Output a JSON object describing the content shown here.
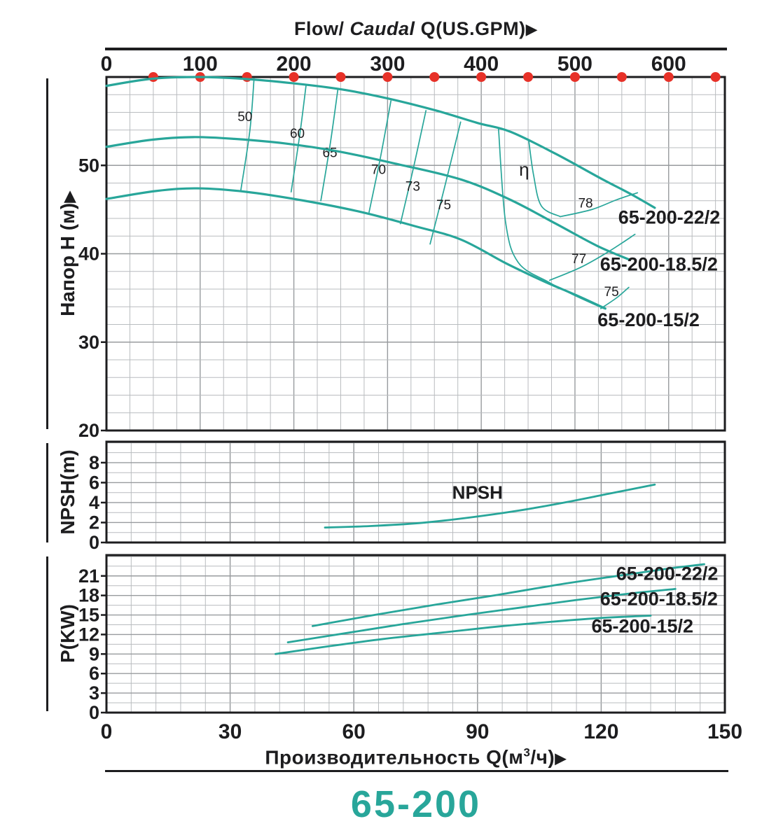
{
  "page_title": "65-200",
  "colors": {
    "accent": "#28a69a",
    "curve": "#28a69a",
    "dot_red": "#e73128",
    "grid_minor": "#b9bcbf",
    "grid_major": "#989b9e",
    "border": "#1d1d1f",
    "text": "#1d1d1f"
  },
  "header": {
    "flow_label": "Flow/",
    "flow_italic": "Caudal",
    "flow_unit": "Q(US.GPM)",
    "arrow": "▶"
  },
  "bottom_axis": {
    "label": "Производительность",
    "unit_pre": "Q(м",
    "unit_sup": "3",
    "unit_post": "/ч)",
    "arrow": "▶",
    "ticks": [
      "0",
      "30",
      "60",
      "90",
      "120",
      "150"
    ]
  },
  "chart_data": [
    {
      "type": "line",
      "name": "head-chart",
      "ylabel": "Напор H (м)",
      "ylabel_arrow": "▶",
      "yticks": [
        "50",
        "40",
        "30",
        "20"
      ],
      "ylim": [
        20,
        60
      ],
      "x_top_ticks": [
        "0",
        "100",
        "200",
        "300",
        "400",
        "500",
        "600"
      ],
      "x_top_dots_gpm": [
        50,
        100,
        150,
        200,
        250,
        300,
        350,
        400,
        450,
        500,
        550,
        600,
        650
      ],
      "x_range_m3h": [
        0,
        150
      ],
      "series": [
        {
          "name": "65-200-22/2",
          "points": [
            [
              0,
              59.0
            ],
            [
              11,
              59.8
            ],
            [
              22,
              60.0
            ],
            [
              33,
              59.8
            ],
            [
              45,
              59.3
            ],
            [
              57,
              58.6
            ],
            [
              68,
              57.6
            ],
            [
              80,
              56.2
            ],
            [
              90,
              54.8
            ],
            [
              98,
              53.8
            ],
            [
              109,
              51.3
            ],
            [
              120,
              48.5
            ],
            [
              127,
              46.8
            ],
            [
              133,
              45.2
            ]
          ],
          "label_pos": [
            136.5,
            43.4
          ]
        },
        {
          "name": "65-200-18.5/2",
          "points": [
            [
              0,
              52.1
            ],
            [
              11,
              52.9
            ],
            [
              21,
              53.2
            ],
            [
              31,
              53.0
            ],
            [
              43,
              52.5
            ],
            [
              56,
              51.6
            ],
            [
              70,
              50.2
            ],
            [
              86,
              48.4
            ],
            [
              98,
              46.1
            ],
            [
              109,
              43.4
            ],
            [
              119,
              40.9
            ],
            [
              127,
              39.3
            ]
          ],
          "label_pos": [
            134.0,
            38.1
          ]
        },
        {
          "name": "65-200-15/2",
          "points": [
            [
              0,
              46.2
            ],
            [
              12,
              47.1
            ],
            [
              22,
              47.4
            ],
            [
              34,
              47.0
            ],
            [
              48,
              46.0
            ],
            [
              62,
              44.7
            ],
            [
              75,
              43.1
            ],
            [
              86,
              41.6
            ],
            [
              97,
              38.9
            ],
            [
              106,
              36.9
            ],
            [
              114,
              35.3
            ],
            [
              121,
              33.8
            ]
          ],
          "label_pos": [
            131.5,
            31.8
          ]
        }
      ],
      "efficiency_lines": [
        {
          "label": "50",
          "points": [
            [
              35.8,
              59.8
            ],
            [
              34.8,
              54.0
            ],
            [
              32.6,
              47.2
            ]
          ],
          "label_pos": [
            33.6,
            55.5
          ]
        },
        {
          "label": "60",
          "points": [
            [
              48.4,
              59.0
            ],
            [
              46.9,
              53.5
            ],
            [
              44.8,
              47.0
            ]
          ],
          "label_pos": [
            46.3,
            53.6
          ]
        },
        {
          "label": "65",
          "points": [
            [
              56.1,
              58.5
            ],
            [
              54.3,
              52.5
            ],
            [
              52.0,
              46.0
            ]
          ],
          "label_pos": [
            54.2,
            51.4
          ]
        },
        {
          "label": "70",
          "points": [
            [
              69.0,
              57.3
            ],
            [
              66.5,
              51.0
            ],
            [
              63.7,
              44.7
            ]
          ],
          "label_pos": [
            66.0,
            49.5
          ]
        },
        {
          "label": "73",
          "points": [
            [
              77.5,
              56.2
            ],
            [
              74.5,
              49.8
            ],
            [
              71.3,
              43.4
            ]
          ],
          "label_pos": [
            74.3,
            47.6
          ]
        },
        {
          "label": "75",
          "points": [
            [
              85.9,
              54.9
            ],
            [
              82.0,
              47.5
            ],
            [
              78.5,
              41.1
            ]
          ],
          "label_pos": [
            81.8,
            45.5
          ]
        },
        {
          "label": "",
          "points": [
            [
              95.1,
              54.1
            ],
            [
              96.8,
              43.6
            ],
            [
              99.9,
              39.0
            ],
            [
              107.2,
              36.8
            ],
            [
              113.5,
              35.3
            ],
            [
              120.6,
              33.8
            ]
          ]
        },
        {
          "label": "η",
          "points": [
            [
              102.4,
              52.9
            ],
            [
              103.6,
              48.9
            ],
            [
              105.5,
              45.4
            ],
            [
              110.1,
              44.2
            ]
          ],
          "label_pos": [
            101.3,
            49.3
          ],
          "eta": true
        },
        {
          "label": "78",
          "points": [
            [
              110.1,
              44.2
            ],
            [
              117.7,
              45.0
            ],
            [
              123.7,
              46.1
            ],
            [
              128.8,
              46.9
            ]
          ],
          "label_pos": [
            116.2,
            45.7
          ]
        },
        {
          "label": "77",
          "points": [
            [
              107.5,
              37.0
            ],
            [
              115.2,
              38.5
            ],
            [
              122.0,
              40.3
            ],
            [
              128.2,
              42.2
            ]
          ],
          "label_pos": [
            114.6,
            39.4
          ]
        },
        {
          "label": "75",
          "points": [
            [
              119.9,
              33.8
            ],
            [
              123.7,
              35.0
            ],
            [
              126.7,
              36.2
            ]
          ],
          "label_pos": [
            122.5,
            35.7
          ]
        }
      ]
    },
    {
      "type": "line",
      "name": "npsh-chart",
      "ylabel": "NPSH(m)",
      "yticks": [
        "8",
        "6",
        "4",
        "2",
        "0"
      ],
      "ylim": [
        0,
        10.1
      ],
      "series": [
        {
          "name": "NPSH",
          "points": [
            [
              53,
              1.5
            ],
            [
              64,
              1.65
            ],
            [
              76,
              1.95
            ],
            [
              88,
              2.5
            ],
            [
              100,
              3.2
            ],
            [
              111,
              4.0
            ],
            [
              122,
              4.9
            ],
            [
              133,
              5.8
            ]
          ],
          "label_pos": [
            90,
            4.4
          ]
        }
      ]
    },
    {
      "type": "line",
      "name": "power-chart",
      "ylabel": "P(KW)",
      "yticks": [
        "21",
        "18",
        "15",
        "12",
        "9",
        "6",
        "3",
        "0"
      ],
      "ylim": [
        0,
        24.2
      ],
      "series": [
        {
          "name": "65-200-22/2",
          "points": [
            [
              50,
              13.3
            ],
            [
              65,
              15.0
            ],
            [
              80,
              16.6
            ],
            [
              95,
              18.1
            ],
            [
              110,
              19.7
            ],
            [
              125,
              21.1
            ],
            [
              136,
              22.1
            ],
            [
              145,
              22.8
            ]
          ],
          "label_pos": [
            136,
            20.4
          ]
        },
        {
          "name": "65-200-18.5/2",
          "points": [
            [
              44,
              10.8
            ],
            [
              58,
              12.2
            ],
            [
              72,
              13.6
            ],
            [
              86,
              14.9
            ],
            [
              100,
              16.1
            ],
            [
              114,
              17.3
            ],
            [
              127,
              18.3
            ],
            [
              138,
              19.0
            ]
          ],
          "label_pos": [
            134,
            16.5
          ]
        },
        {
          "name": "65-200-15/2",
          "points": [
            [
              41,
              9.0
            ],
            [
              54,
              10.2
            ],
            [
              67,
              11.3
            ],
            [
              80,
              12.2
            ],
            [
              93,
              13.1
            ],
            [
              105,
              13.8
            ],
            [
              119,
              14.5
            ],
            [
              132,
              14.9
            ]
          ],
          "label_pos": [
            130,
            12.3
          ]
        }
      ]
    }
  ]
}
